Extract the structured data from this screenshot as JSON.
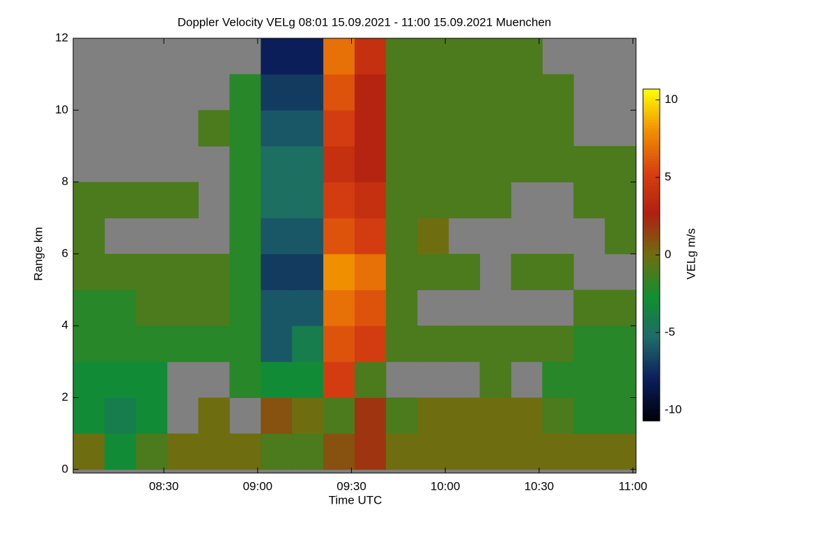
{
  "chart_data": {
    "type": "heatmap",
    "title": "Doppler Velocity VELg   08:01 15.09.2021 - 11:00 15.09.2021 Muenchen",
    "x_label": "Time UTC",
    "y_label": "Range km",
    "colorbar_label": "VELg m/s",
    "x": [
      486,
      496,
      506,
      516,
      526,
      536,
      546,
      556,
      566,
      576,
      586,
      596,
      606,
      616,
      626,
      636,
      646,
      656
    ],
    "y": [
      0.5,
      1.5,
      2.5,
      3.5,
      4.5,
      5.5,
      6.5,
      7.5,
      8.5,
      9.5,
      10.5,
      11.5
    ],
    "z": [
      [
        0,
        -3,
        -1,
        0,
        0,
        0,
        -1,
        -1,
        1,
        2,
        0,
        0,
        0,
        0,
        0,
        0,
        0,
        0
      ],
      [
        -3,
        -4,
        -3,
        null,
        0,
        null,
        1,
        0,
        -1,
        2,
        -1,
        0,
        0,
        0,
        0,
        -1,
        -2,
        -2
      ],
      [
        -3,
        -3,
        -3,
        null,
        null,
        -2,
        -3,
        -3,
        5,
        -1,
        null,
        null,
        null,
        -1,
        null,
        -2,
        -2,
        -2
      ],
      [
        -2,
        -2,
        -2,
        -2,
        -2,
        -2,
        -6,
        -4,
        6,
        5,
        -1,
        -1,
        -1,
        -1,
        -1,
        -1,
        -2,
        -2
      ],
      [
        -2,
        -2,
        -1,
        -1,
        -1,
        -2,
        -6,
        -6,
        7,
        6,
        -1,
        null,
        null,
        null,
        null,
        null,
        -1,
        -1
      ],
      [
        -1,
        -1,
        -1,
        -1,
        -1,
        -2,
        -7,
        -7,
        8,
        7,
        -1,
        -1,
        -1,
        null,
        -1,
        -1,
        null,
        null
      ],
      [
        -1,
        null,
        null,
        null,
        null,
        -2,
        -6,
        -6,
        6,
        5,
        -1,
        0,
        null,
        null,
        null,
        null,
        null,
        -1
      ],
      [
        -1,
        -1,
        -1,
        -1,
        null,
        -2,
        -5,
        -5,
        5,
        4,
        -1,
        -1,
        -1,
        -1,
        null,
        null,
        -1,
        -1
      ],
      [
        null,
        null,
        null,
        null,
        null,
        -2,
        -5,
        -5,
        4,
        3,
        -1,
        -1,
        -1,
        -1,
        -1,
        -1,
        -1,
        -1
      ],
      [
        null,
        null,
        null,
        null,
        -1,
        -2,
        -6,
        -6,
        5,
        3,
        -1,
        -1,
        -1,
        -1,
        -1,
        -1,
        null,
        null
      ],
      [
        null,
        null,
        null,
        null,
        null,
        -2,
        -7,
        -7,
        6,
        3,
        -1,
        -1,
        -1,
        -1,
        -1,
        -1,
        null,
        null
      ],
      [
        null,
        null,
        null,
        null,
        null,
        null,
        -8,
        -8,
        7,
        4,
        -1,
        -1,
        -1,
        -1,
        -1,
        null,
        null,
        null
      ]
    ],
    "xlim": [
      481,
      661
    ],
    "ylim": [
      -0.1,
      12
    ],
    "zlim": [
      -10.7,
      10.7
    ],
    "xticks": [
      {
        "value": 510,
        "label": "08:30"
      },
      {
        "value": 540,
        "label": "09:00"
      },
      {
        "value": 570,
        "label": "09:30"
      },
      {
        "value": 600,
        "label": "10:00"
      },
      {
        "value": 630,
        "label": "10:30"
      },
      {
        "value": 660,
        "label": "11:00"
      }
    ],
    "yticks": [
      0,
      2,
      4,
      6,
      8,
      10,
      12
    ],
    "zticks": [
      -10,
      -5,
      0,
      5,
      10
    ],
    "missing_color": "#808080",
    "colorscale": [
      "#000008",
      "#0b1d5a",
      "#1f6a6a",
      "#109030",
      "#6e6e10",
      "#b02010",
      "#d84010",
      "#f09000",
      "#ffff00"
    ]
  }
}
